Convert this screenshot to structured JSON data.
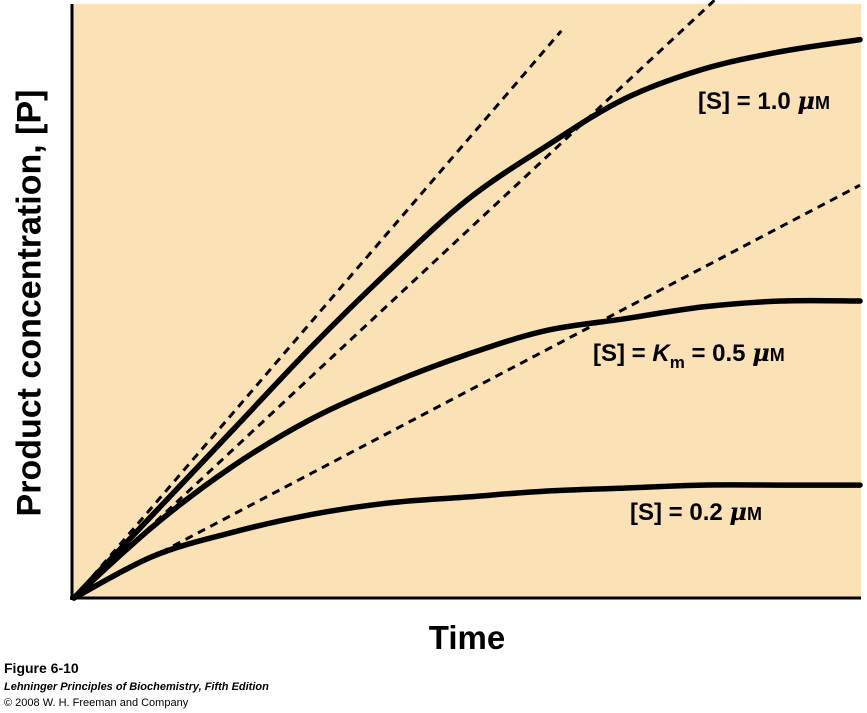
{
  "chart_data": {
    "type": "line",
    "title": "",
    "xlabel": "Time",
    "ylabel": "Product concentration, [P]",
    "xlim": [
      0,
      1
    ],
    "ylim": [
      0,
      1
    ],
    "x_ticks": [],
    "y_ticks": [],
    "background_color": "#fbe1b6",
    "line_color": "#000000",
    "series": [
      {
        "name": "[S] = 1.0 μM",
        "label_prefix": "[S] = 1.0 ",
        "label_mu": "μ",
        "label_unit": "M",
        "style": "solid",
        "points": [
          [
            0,
            0
          ],
          [
            0.1,
            0.14
          ],
          [
            0.2,
            0.28
          ],
          [
            0.3,
            0.42
          ],
          [
            0.4,
            0.55
          ],
          [
            0.5,
            0.67
          ],
          [
            0.6,
            0.76
          ],
          [
            0.7,
            0.84
          ],
          [
            0.8,
            0.89
          ],
          [
            0.9,
            0.92
          ],
          [
            1.0,
            0.94
          ]
        ]
      },
      {
        "name": "[S] = Km = 0.5 μM",
        "label_prefix": "[S] = ",
        "label_k": "K",
        "label_sub": "m",
        "label_suffix": " = 0.5 ",
        "label_mu": "μ",
        "label_unit": "M",
        "style": "solid",
        "points": [
          [
            0,
            0
          ],
          [
            0.1,
            0.12
          ],
          [
            0.2,
            0.22
          ],
          [
            0.3,
            0.3
          ],
          [
            0.4,
            0.36
          ],
          [
            0.5,
            0.41
          ],
          [
            0.6,
            0.45
          ],
          [
            0.7,
            0.47
          ],
          [
            0.8,
            0.49
          ],
          [
            0.9,
            0.5
          ],
          [
            1.0,
            0.5
          ]
        ]
      },
      {
        "name": "[S] = 0.2 μM",
        "label_prefix": "[S] = 0.2 ",
        "label_mu": "μ",
        "label_unit": "M",
        "style": "solid",
        "points": [
          [
            0,
            0
          ],
          [
            0.1,
            0.07
          ],
          [
            0.2,
            0.11
          ],
          [
            0.3,
            0.14
          ],
          [
            0.4,
            0.16
          ],
          [
            0.5,
            0.17
          ],
          [
            0.6,
            0.18
          ],
          [
            0.7,
            0.185
          ],
          [
            0.8,
            0.19
          ],
          [
            0.9,
            0.19
          ],
          [
            1.0,
            0.19
          ]
        ]
      }
    ],
    "tangents": [
      {
        "name": "initial-rate [S]=1.0",
        "slope": 1.54,
        "x_end": 0.62,
        "style": "dashed"
      },
      {
        "name": "initial-rate [S]=0.5",
        "slope": 1.235,
        "x_end": 0.86,
        "style": "dashed"
      },
      {
        "name": "initial-rate [S]=0.2",
        "slope": 0.695,
        "x_end": 1.0,
        "style": "dashed"
      }
    ]
  },
  "caption": {
    "figure": "Figure 6-10",
    "book": "Lehninger Principles of Biochemistry, Fifth Edition",
    "copyright": "© 2008 W. H. Freeman and Company"
  }
}
